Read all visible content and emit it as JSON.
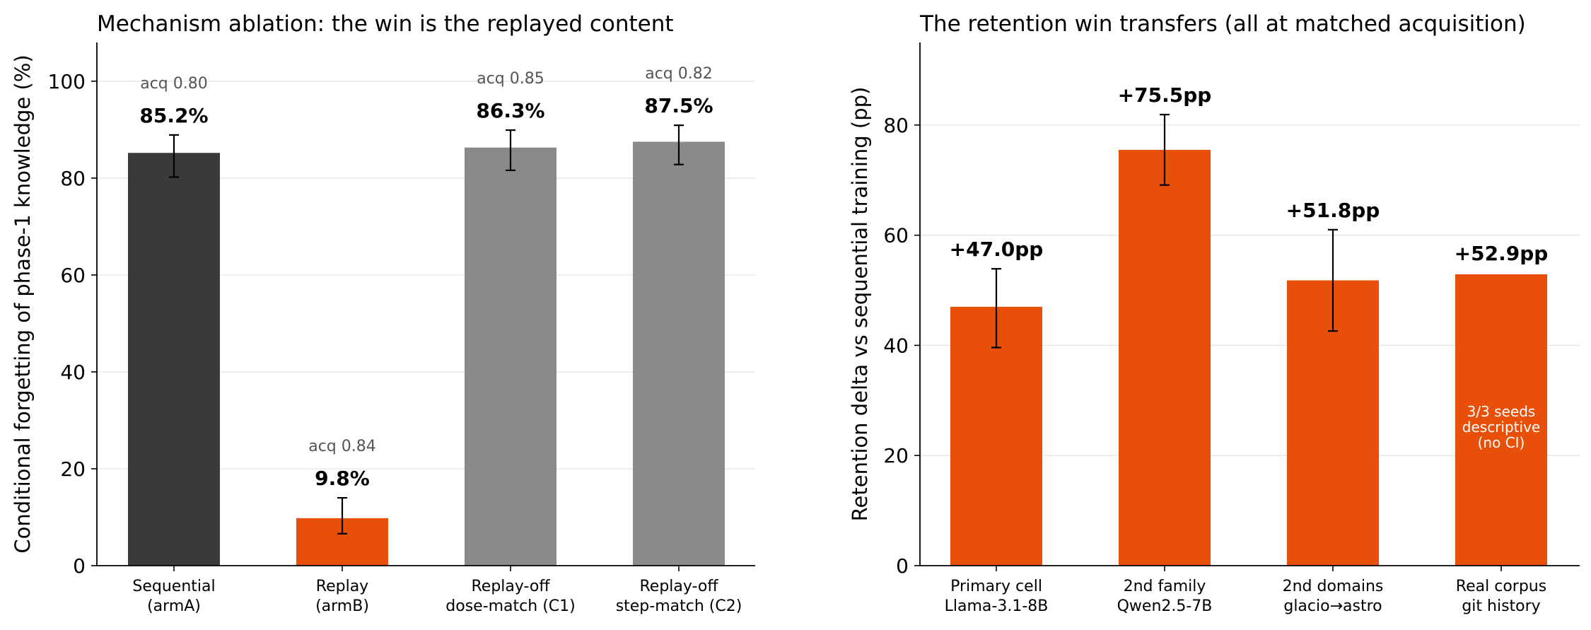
{
  "chart_data": [
    {
      "type": "bar",
      "title": "Mechanism ablation: the win is the replayed content",
      "ylabel": "Conditional forgetting of phase-1 knowledge (%)",
      "xlabel": "",
      "ylim": [
        0,
        108
      ],
      "yticks": [
        0,
        20,
        40,
        60,
        80,
        100
      ],
      "grid": "horizontal",
      "categories": [
        "Sequential\n(armA)",
        "Replay\n(armB)",
        "Replay-off\ndose-match (C1)",
        "Replay-off\nstep-match (C2)"
      ],
      "values": [
        85.2,
        9.8,
        86.3,
        87.5
      ],
      "error_low": [
        80.2,
        6.6,
        81.6,
        82.8
      ],
      "error_high": [
        88.9,
        14.0,
        89.9,
        90.9
      ],
      "value_labels": [
        "85.2%",
        "9.8%",
        "86.3%",
        "87.5%"
      ],
      "annotations": [
        "acq 0.80",
        "acq 0.84",
        "acq 0.85",
        "acq 0.82"
      ],
      "colors": [
        "#3a3a3a",
        "#e8500a",
        "#8a8a8a",
        "#8a8a8a"
      ]
    },
    {
      "type": "bar",
      "title": "The retention win transfers (all at matched acquisition)",
      "ylabel": "Retention delta vs sequential training (pp)",
      "xlabel": "",
      "ylim": [
        0,
        95
      ],
      "yticks": [
        0,
        20,
        40,
        60,
        80
      ],
      "grid": "horizontal",
      "categories": [
        "Primary cell\nLlama-3.1-8B",
        "2nd family\nQwen2.5-7B",
        "2nd domains\nglacio→astro",
        "Real corpus\ngit history"
      ],
      "values": [
        47.0,
        75.5,
        51.8,
        52.9
      ],
      "error_low": [
        39.6,
        69.1,
        42.6,
        null
      ],
      "error_high": [
        53.9,
        81.9,
        61.0,
        null
      ],
      "value_labels": [
        "+47.0pp",
        "+75.5pp",
        "+51.8pp",
        "+52.9pp"
      ],
      "bar_note": {
        "index": 3,
        "text": "3/3 seeds\ndescriptive\n(no CI)"
      },
      "colors": [
        "#e8500a",
        "#e8500a",
        "#e8500a",
        "#e8500a"
      ]
    }
  ]
}
